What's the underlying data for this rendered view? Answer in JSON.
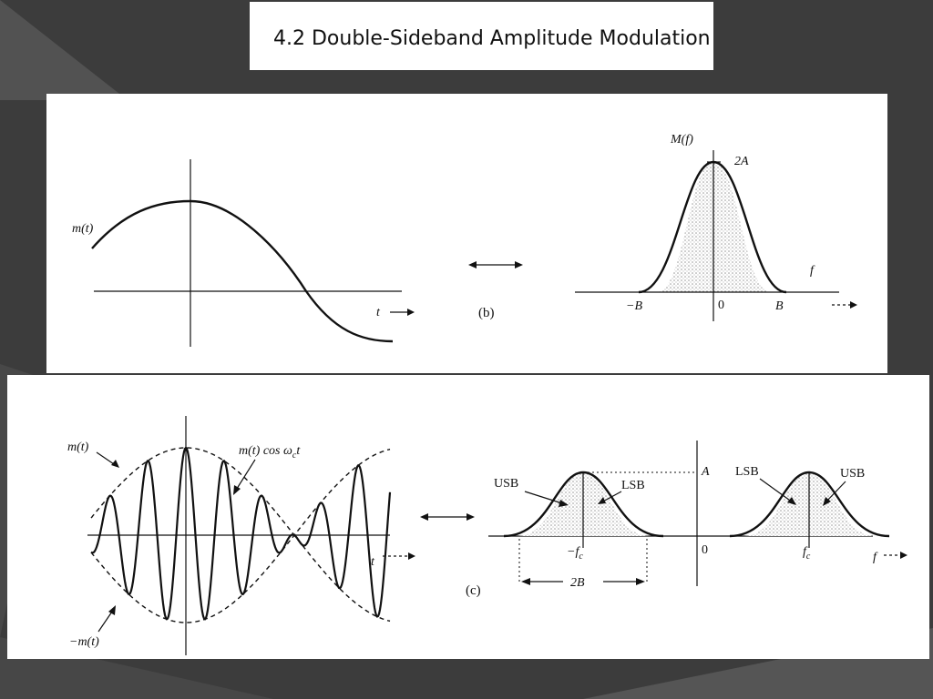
{
  "slide": {
    "title": "4.2 Double-Sideband Amplitude Modulation"
  },
  "panel_b": {
    "signal_label": "m(t)",
    "time_label": "t",
    "transform_label": "(b)",
    "spectrum_label": "M(f)",
    "peak_label": "2A",
    "freq_label": "f",
    "tick_neg_b": "−B",
    "tick_zero": "0",
    "tick_b": "B"
  },
  "panel_c": {
    "envelope_label": "m(t)",
    "carrier_label": "m(t) cos ω",
    "carrier_sub": "c",
    "carrier_suffix": "t",
    "neg_envelope_label": "−m(t)",
    "time_label": "t",
    "transform_label": "(c)",
    "usb_left": "USB",
    "lsb_left": "LSB",
    "lsb_right": "LSB",
    "usb_right": "USB",
    "amp_label": "A",
    "tick_neg_fc": "−f",
    "tick_neg_fc_sub": "c",
    "tick_zero": "0",
    "tick_fc": "f",
    "tick_fc_sub": "c",
    "freq_label": "f",
    "bandwidth_label": "2B"
  },
  "colors": {
    "background": "#3c3c3c",
    "panel": "#ffffff",
    "ink": "#111111",
    "stipple": "#c8c8c8"
  }
}
